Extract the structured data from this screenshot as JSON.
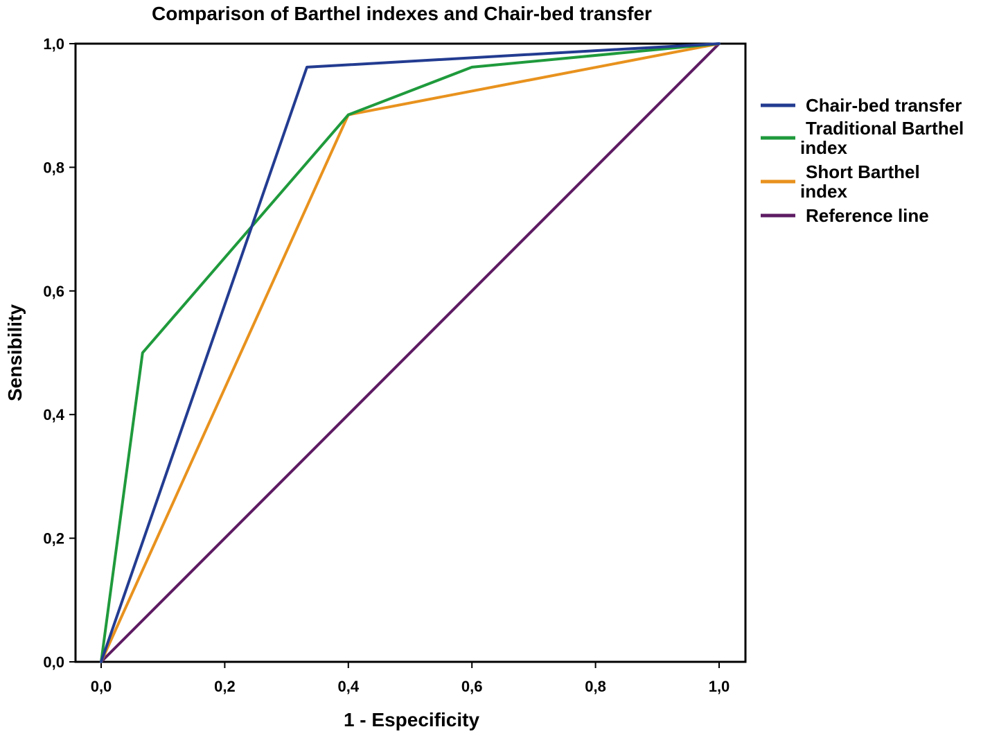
{
  "chart_data": {
    "type": "line",
    "title": "Comparison of Barthel indexes and Chair-bed transfer",
    "xlabel": "1 - Especificity",
    "ylabel": "Sensibility",
    "xlim": [
      0,
      1
    ],
    "ylim": [
      0,
      1
    ],
    "x_ticks": [
      "0,0",
      "0,2",
      "0,4",
      "0,6",
      "0,8",
      "1,0"
    ],
    "y_ticks": [
      "0,0",
      "0,2",
      "0,4",
      "0,6",
      "0,8",
      "1,0"
    ],
    "grid": false,
    "legend_position": "right",
    "series": [
      {
        "name": "Chair-bed transfer",
        "color": "#233c91",
        "label_lines": [
          "Chair-bed transfer"
        ],
        "x": [
          0.0,
          0.333,
          1.0
        ],
        "y": [
          0.0,
          0.962,
          1.0
        ]
      },
      {
        "name": "Traditional Barthel index",
        "color": "#1f9a3c",
        "label_lines": [
          "Traditional Barthel",
          "index"
        ],
        "x": [
          0.0,
          0.067,
          0.4,
          0.6,
          1.0
        ],
        "y": [
          0.0,
          0.5,
          0.885,
          0.962,
          1.0
        ]
      },
      {
        "name": "Short Barthel index",
        "color": "#e8921e",
        "label_lines": [
          "Short Barthel",
          "index"
        ],
        "x": [
          0.0,
          0.4,
          1.0
        ],
        "y": [
          0.0,
          0.885,
          1.0
        ]
      },
      {
        "name": "Reference line",
        "color": "#5e1c63",
        "label_lines": [
          "Reference line"
        ],
        "x": [
          0.0,
          1.0
        ],
        "y": [
          0.0,
          1.0
        ]
      }
    ]
  }
}
